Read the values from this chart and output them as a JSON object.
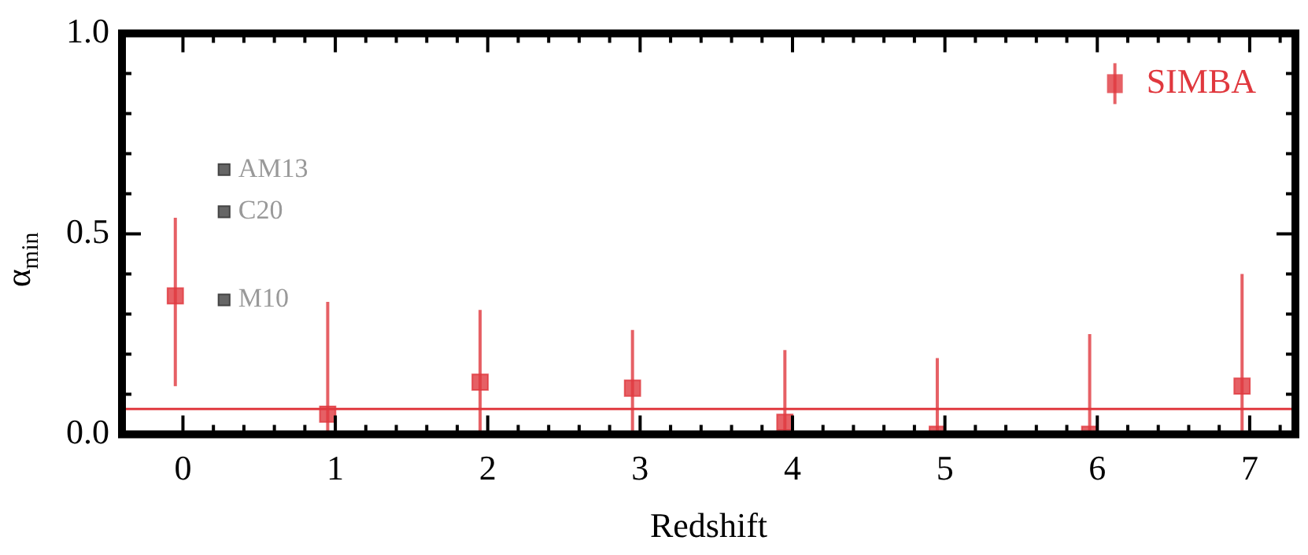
{
  "chart_data": {
    "type": "scatter",
    "xlabel": "Redshift",
    "ylabel": "α$_{min}$",
    "xlim": [
      -0.4,
      7.3
    ],
    "ylim": [
      0,
      1
    ],
    "xticks": [
      0,
      {
        "value": 0.2,
        "label": null
      },
      {
        "value": 0.4,
        "label": null
      },
      {
        "value": 0.6,
        "label": null
      },
      {
        "value": 0.8,
        "label": null
      },
      1,
      {
        "value": 1.2,
        "label": null
      },
      {
        "value": 1.4,
        "label": null
      },
      {
        "value": 1.6,
        "label": null
      },
      {
        "value": 1.8,
        "label": null
      },
      2,
      {
        "value": 2.2,
        "label": null
      },
      {
        "value": 2.4,
        "label": null
      },
      {
        "value": 2.6,
        "label": null
      },
      {
        "value": 2.8,
        "label": null
      },
      3,
      {
        "value": 3.2,
        "label": null
      },
      {
        "value": 3.4,
        "label": null
      },
      {
        "value": 3.6,
        "label": null
      },
      {
        "value": 3.8,
        "label": null
      },
      4,
      {
        "value": 4.2,
        "label": null
      },
      {
        "value": 4.4,
        "label": null
      },
      {
        "value": 4.6,
        "label": null
      },
      {
        "value": 4.8,
        "label": null
      },
      5,
      {
        "value": 5.2,
        "label": null
      },
      {
        "value": 5.4,
        "label": null
      },
      {
        "value": 5.6,
        "label": null
      },
      {
        "value": 5.8,
        "label": null
      },
      6,
      {
        "value": 6.2,
        "label": null
      },
      {
        "value": 6.4,
        "label": null
      },
      {
        "value": 6.6,
        "label": null
      },
      {
        "value": 6.8,
        "label": null
      },
      7,
      {
        "value": 7.2,
        "label": null
      }
    ],
    "yticks": [
      {
        "value": 0,
        "label": "0.0"
      },
      {
        "value": 0.1,
        "label": null
      },
      {
        "value": 0.2,
        "label": null
      },
      {
        "value": 0.3,
        "label": null
      },
      {
        "value": 0.4,
        "label": null
      },
      {
        "value": 0.5,
        "label": "0.5"
      },
      {
        "value": 0.6,
        "label": null
      },
      {
        "value": 0.7,
        "label": null
      },
      {
        "value": 0.8,
        "label": null
      },
      {
        "value": 0.9,
        "label": null
      },
      {
        "value": 1,
        "label": "1.0"
      }
    ],
    "marker": "square",
    "legend": "top right",
    "grid": false,
    "series": [
      {
        "name": "SIMBA",
        "color": "#e0383e",
        "x": [
          -0.05,
          0.95,
          1.95,
          2.95,
          3.95,
          4.95,
          5.95,
          6.95
        ],
        "values": [
          0.345,
          0.05,
          0.13,
          0.115,
          0.03,
          0.0,
          0.0,
          0.12
        ],
        "errors": [
          [
            0.12,
            0.54
          ],
          [
            0.0,
            0.33
          ],
          [
            0.0,
            0.31
          ],
          [
            0.0,
            0.26
          ],
          [
            0.0,
            0.21
          ],
          [
            0.0,
            0.19
          ],
          [
            0.0,
            0.25
          ],
          [
            0.0,
            0.4
          ]
        ]
      },
      {
        "name": "AM13",
        "color": "#666666",
        "x": [
          0.27
        ],
        "values": [
          0.66
        ]
      },
      {
        "name": "C20",
        "color": "#666666",
        "x": [
          0.27
        ],
        "values": [
          0.555
        ]
      },
      {
        "name": "M10",
        "color": "#666666",
        "x": [
          0.27
        ],
        "values": [
          0.335
        ]
      }
    ],
    "ref_lines": [
      {
        "axis": "y",
        "value": 0.063,
        "color": "#e0383e"
      }
    ]
  }
}
